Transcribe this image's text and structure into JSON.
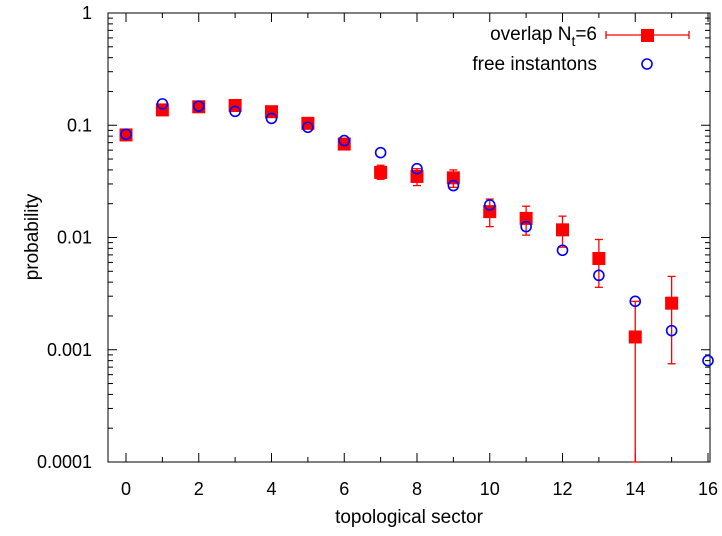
{
  "chart_data": {
    "type": "scatter",
    "xlabel": "topological sector",
    "ylabel": "probability",
    "xlim": [
      -0.5,
      16
    ],
    "ylim": [
      0.0001,
      1
    ],
    "yscale": "log",
    "grid": false,
    "legend_position": "top-right",
    "x_ticks": [
      0,
      2,
      4,
      6,
      8,
      10,
      12,
      14,
      16
    ],
    "y_ticks": [
      {
        "value": 0.0001,
        "label": "0.0001"
      },
      {
        "value": 0.001,
        "label": "0.001"
      },
      {
        "value": 0.01,
        "label": "0.01"
      },
      {
        "value": 0.1,
        "label": "0.1"
      },
      {
        "value": 1,
        "label": "1"
      }
    ],
    "series": [
      {
        "name_main": "overlap N",
        "name_sub": "t",
        "name_tail": "=6",
        "color": "#ff0000",
        "marker": "filled-square",
        "points": [
          {
            "x": 0,
            "y": 0.082,
            "lo": 0.078,
            "hi": 0.086
          },
          {
            "x": 1,
            "y": 0.137,
            "lo": 0.131,
            "hi": 0.143
          },
          {
            "x": 2,
            "y": 0.146,
            "lo": 0.14,
            "hi": 0.152
          },
          {
            "x": 3,
            "y": 0.15,
            "lo": 0.144,
            "hi": 0.156
          },
          {
            "x": 4,
            "y": 0.132,
            "lo": 0.126,
            "hi": 0.138
          },
          {
            "x": 5,
            "y": 0.104,
            "lo": 0.099,
            "hi": 0.109
          },
          {
            "x": 6,
            "y": 0.068,
            "lo": 0.063,
            "hi": 0.073
          },
          {
            "x": 7,
            "y": 0.038,
            "lo": 0.033,
            "hi": 0.044
          },
          {
            "x": 8,
            "y": 0.035,
            "lo": 0.029,
            "hi": 0.041
          },
          {
            "x": 9,
            "y": 0.034,
            "lo": 0.028,
            "hi": 0.04
          },
          {
            "x": 10,
            "y": 0.017,
            "lo": 0.0125,
            "hi": 0.022
          },
          {
            "x": 11,
            "y": 0.0148,
            "lo": 0.0105,
            "hi": 0.019
          },
          {
            "x": 12,
            "y": 0.0117,
            "lo": 0.0082,
            "hi": 0.0155
          },
          {
            "x": 13,
            "y": 0.0065,
            "lo": 0.0036,
            "hi": 0.0096
          },
          {
            "x": 14,
            "y": 0.0013,
            "lo": 0.0001,
            "hi": 0.0027
          },
          {
            "x": 15,
            "y": 0.0026,
            "lo": 0.00075,
            "hi": 0.0045
          }
        ]
      },
      {
        "name": "free instantons",
        "color": "#0000ff",
        "marker": "open-circle",
        "points": [
          {
            "x": 0,
            "y": 0.083
          },
          {
            "x": 1,
            "y": 0.155
          },
          {
            "x": 2,
            "y": 0.148
          },
          {
            "x": 3,
            "y": 0.133
          },
          {
            "x": 4,
            "y": 0.115
          },
          {
            "x": 5,
            "y": 0.096
          },
          {
            "x": 6,
            "y": 0.073
          },
          {
            "x": 7,
            "y": 0.057
          },
          {
            "x": 8,
            "y": 0.041
          },
          {
            "x": 9,
            "y": 0.029
          },
          {
            "x": 10,
            "y": 0.0195
          },
          {
            "x": 11,
            "y": 0.0125
          },
          {
            "x": 12,
            "y": 0.0077
          },
          {
            "x": 13,
            "y": 0.0046
          },
          {
            "x": 14,
            "y": 0.0027
          },
          {
            "x": 15,
            "y": 0.00148
          },
          {
            "x": 16,
            "y": 0.0008
          }
        ]
      }
    ]
  }
}
